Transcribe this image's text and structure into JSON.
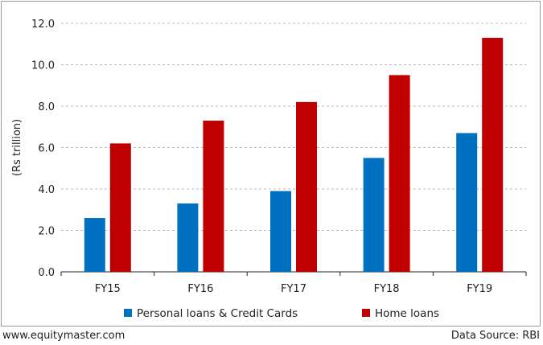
{
  "chart_data": {
    "type": "bar",
    "categories": [
      "FY15",
      "FY16",
      "FY17",
      "FY18",
      "FY19"
    ],
    "series": [
      {
        "name": "Personal loans & Credit Cards",
        "color": "#0070c0",
        "values": [
          2.6,
          3.3,
          3.9,
          5.5,
          6.7
        ]
      },
      {
        "name": "Home loans",
        "color": "#c00000",
        "values": [
          6.2,
          7.3,
          8.2,
          9.5,
          11.3
        ]
      }
    ],
    "ylabel": "(Rs trillion)",
    "ylim": [
      0,
      12
    ],
    "yticks": [
      "0.0",
      "2.0",
      "4.0",
      "6.0",
      "8.0",
      "10.0",
      "12.0"
    ],
    "grid": "horizontal dashed",
    "legend": "bottom-center"
  },
  "footer": {
    "website": "www.equitymaster.com",
    "source": "Data Source: RBI"
  }
}
